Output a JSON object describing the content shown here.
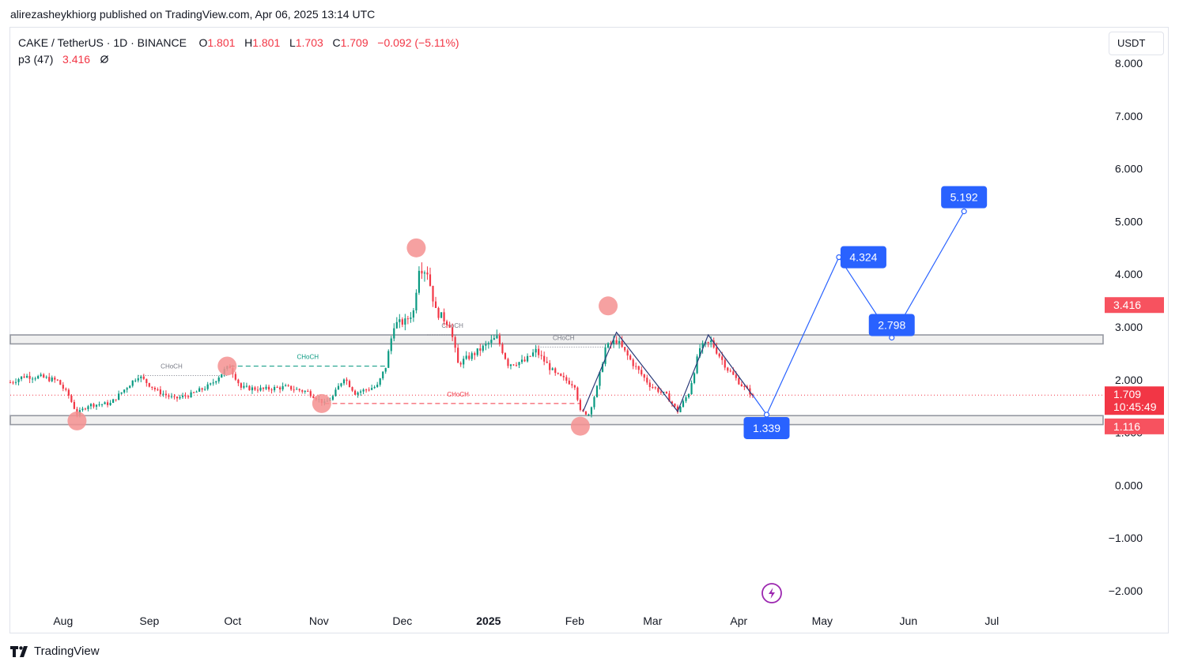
{
  "header": {
    "credit": "alirezasheykhiorg published on TradingView.com, Apr 06, 2025 13:14 UTC"
  },
  "legend": {
    "symbol": "CAKE / TetherUS · 1D · BINANCE",
    "open_label": "O",
    "open": "1.801",
    "high_label": "H",
    "high": "1.801",
    "low_label": "L",
    "low": "1.703",
    "close_label": "C",
    "close": "1.709",
    "change": "−0.092 (−5.11%)",
    "indicator": "p3 (47)",
    "indicator_value": "3.416",
    "indicator_icon": "eye-slash-icon"
  },
  "currency_button": "USDT",
  "footer": {
    "logo_text": "TradingView"
  },
  "colors": {
    "up": "#089981",
    "down": "#f23645",
    "projection": "#2962ff",
    "zone": "#d1d4dc",
    "marker": "#f7a3a3"
  },
  "chart_data": {
    "type": "candlestick",
    "y_ticks": [
      "8.000",
      "7.000",
      "6.000",
      "5.000",
      "4.000",
      "3.000",
      "2.000",
      "1.000",
      "0.000",
      "−1.000",
      "−2.000"
    ],
    "ylim": [
      -2.3,
      8.6
    ],
    "x_ticks": [
      {
        "label": "Aug",
        "date": "2024-08-01",
        "bold": false
      },
      {
        "label": "Sep",
        "date": "2024-09-01",
        "bold": false
      },
      {
        "label": "Oct",
        "date": "2024-10-01",
        "bold": false
      },
      {
        "label": "Nov",
        "date": "2024-11-01",
        "bold": false
      },
      {
        "label": "Dec",
        "date": "2024-12-01",
        "bold": false
      },
      {
        "label": "2025",
        "date": "2025-01-01",
        "bold": true
      },
      {
        "label": "Feb",
        "date": "2025-02-01",
        "bold": false
      },
      {
        "label": "Mar",
        "date": "2025-03-01",
        "bold": false
      },
      {
        "label": "Apr",
        "date": "2025-04-01",
        "bold": false
      },
      {
        "label": "May",
        "date": "2025-05-01",
        "bold": false
      },
      {
        "label": "Jun",
        "date": "2025-06-01",
        "bold": false
      },
      {
        "label": "Jul",
        "date": "2025-07-01",
        "bold": false
      }
    ],
    "xlim": [
      "2024-07-13",
      "2025-08-10"
    ],
    "price_path": [
      [
        "2024-07-13",
        1.95
      ],
      [
        "2024-07-18",
        2.07
      ],
      [
        "2024-07-24",
        2.05
      ],
      [
        "2024-07-30",
        1.98
      ],
      [
        "2024-08-03",
        1.7
      ],
      [
        "2024-08-06",
        1.35
      ],
      [
        "2024-08-10",
        1.52
      ],
      [
        "2024-08-18",
        1.55
      ],
      [
        "2024-08-25",
        1.92
      ],
      [
        "2024-08-28",
        2.08
      ],
      [
        "2024-09-04",
        1.78
      ],
      [
        "2024-09-10",
        1.64
      ],
      [
        "2024-09-16",
        1.72
      ],
      [
        "2024-09-23",
        1.9
      ],
      [
        "2024-09-28",
        2.18
      ],
      [
        "2024-09-30",
        2.25
      ],
      [
        "2024-10-04",
        1.85
      ],
      [
        "2024-10-12",
        1.82
      ],
      [
        "2024-10-20",
        1.86
      ],
      [
        "2024-10-28",
        1.77
      ],
      [
        "2024-11-03",
        1.55
      ],
      [
        "2024-11-06",
        1.68
      ],
      [
        "2024-11-10",
        2.05
      ],
      [
        "2024-11-14",
        1.75
      ],
      [
        "2024-11-22",
        1.88
      ],
      [
        "2024-11-25",
        2.25
      ],
      [
        "2024-11-28",
        3.05
      ],
      [
        "2024-12-02",
        3.1
      ],
      [
        "2024-12-05",
        3.3
      ],
      [
        "2024-12-07",
        4.15
      ],
      [
        "2024-12-10",
        4.05
      ],
      [
        "2024-12-13",
        3.3
      ],
      [
        "2024-12-18",
        3.05
      ],
      [
        "2024-12-21",
        2.3
      ],
      [
        "2024-12-27",
        2.5
      ],
      [
        "2024-12-31",
        2.65
      ],
      [
        "2025-01-04",
        2.8
      ],
      [
        "2025-01-08",
        2.3
      ],
      [
        "2025-01-14",
        2.35
      ],
      [
        "2025-01-18",
        2.55
      ],
      [
        "2025-01-25",
        2.1
      ],
      [
        "2025-02-01",
        1.9
      ],
      [
        "2025-02-03",
        1.4
      ],
      [
        "2025-02-06",
        1.35
      ],
      [
        "2025-02-09",
        1.85
      ],
      [
        "2025-02-12",
        2.6
      ],
      [
        "2025-02-16",
        2.75
      ],
      [
        "2025-02-22",
        2.3
      ],
      [
        "2025-02-28",
        1.9
      ],
      [
        "2025-03-06",
        1.7
      ],
      [
        "2025-03-10",
        1.4
      ],
      [
        "2025-03-14",
        1.75
      ],
      [
        "2025-03-18",
        2.6
      ],
      [
        "2025-03-22",
        2.72
      ],
      [
        "2025-03-28",
        2.2
      ],
      [
        "2025-04-02",
        1.9
      ],
      [
        "2025-04-06",
        1.709
      ]
    ],
    "zones": [
      {
        "y_top": 2.85,
        "y_bottom": 2.68
      },
      {
        "y_top": 1.32,
        "y_bottom": 1.15
      }
    ],
    "current_price_line": 1.709,
    "markers": [
      {
        "date": "2024-08-06",
        "value": 1.22
      },
      {
        "date": "2024-09-29",
        "value": 2.26
      },
      {
        "date": "2024-11-02",
        "value": 1.55
      },
      {
        "date": "2024-12-06",
        "value": 4.5
      },
      {
        "date": "2025-02-03",
        "value": 1.12
      },
      {
        "date": "2025-02-13",
        "value": 3.4
      }
    ],
    "choch": [
      {
        "label": "CHoCH",
        "from": "2024-08-28",
        "to": "2024-09-29",
        "value": 2.08,
        "color": "#787b86",
        "dash": "1,2",
        "text_date": "2024-09-09"
      },
      {
        "label": "CHoCH",
        "from": "2024-09-30",
        "to": "2024-11-25",
        "value": 2.26,
        "color": "#089981",
        "dash": "6,4",
        "text_date": "2024-10-28"
      },
      {
        "label": "CHoCH",
        "from": "2024-11-03",
        "to": "2025-02-03",
        "value": 1.55,
        "color": "#f23645",
        "dash": "6,4",
        "text_date": "2024-12-21"
      },
      {
        "label": "CHoCH",
        "from": "2024-12-10",
        "to": "2024-12-21",
        "value": 2.85,
        "color": "#787b86",
        "dash": "1,2",
        "text_date": "2024-12-19"
      },
      {
        "label": "CHoCH",
        "from": "2025-01-18",
        "to": "2025-02-13",
        "value": 2.62,
        "color": "#787b86",
        "dash": "1,2",
        "text_date": "2025-01-28"
      }
    ],
    "swing_lines": [
      [
        [
          "2025-02-04",
          1.4
        ],
        [
          "2025-02-16",
          2.9
        ],
        [
          "2025-03-10",
          1.4
        ],
        [
          "2025-03-21",
          2.85
        ],
        [
          "2025-04-06",
          1.7
        ]
      ]
    ],
    "projection": [
      {
        "date": "2025-04-11",
        "value": 1.339,
        "label": "1.339"
      },
      {
        "date": "2025-05-07",
        "value": 4.324,
        "label": "4.324"
      },
      {
        "date": "2025-05-26",
        "value": 2.798,
        "label": "2.798"
      },
      {
        "date": "2025-06-21",
        "value": 5.192,
        "label": "5.192"
      }
    ],
    "price_tags": [
      {
        "value": 3.416,
        "text": "3.416",
        "color": "#f7525f"
      },
      {
        "value": 1.709,
        "text": "1.709",
        "sub": "10:45:49",
        "color": "#f23645"
      },
      {
        "value": 1.116,
        "text": "1.116",
        "color": "#f7525f"
      }
    ],
    "flash_icon": "lightning-icon"
  }
}
